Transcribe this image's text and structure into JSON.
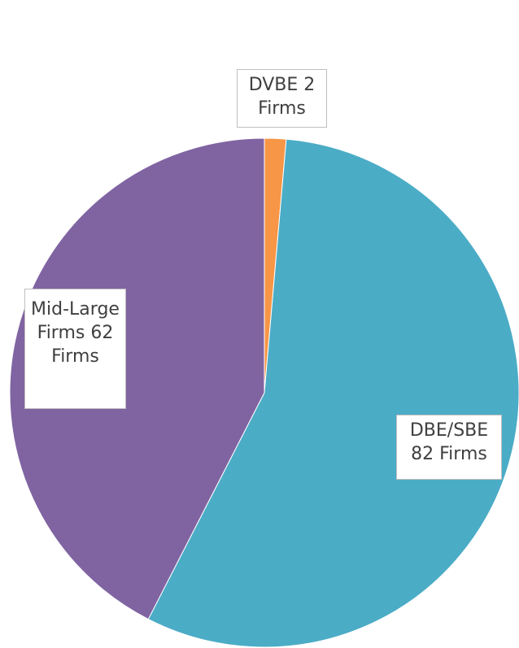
{
  "chart_data": {
    "type": "pie",
    "values": [
      2,
      82,
      62
    ],
    "value_labels": [
      "DVBE 2 Firms",
      "DBE/SBE 82 Firms",
      "Mid-Large Firms 62 Firms"
    ],
    "colors": [
      "#f79646",
      "#4bacc6",
      "#8064a2"
    ]
  }
}
